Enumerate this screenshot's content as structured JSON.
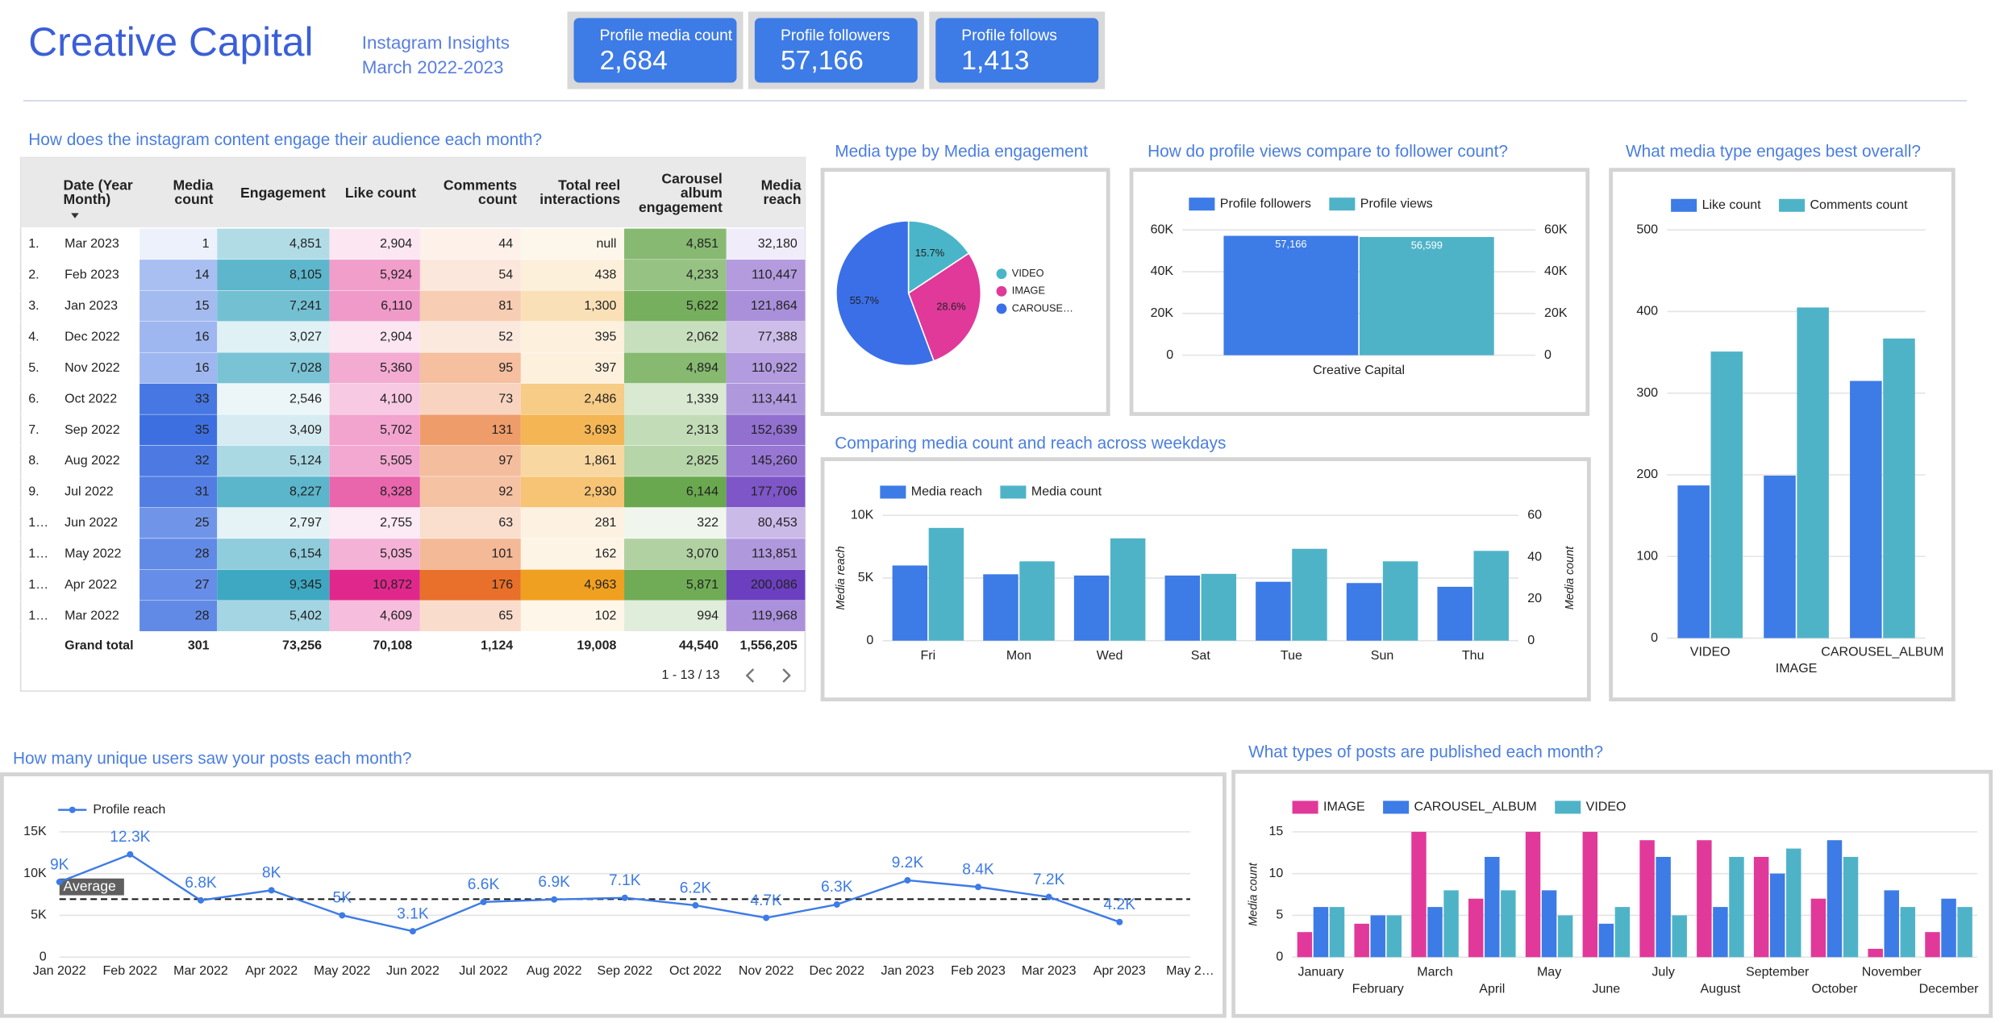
{
  "header": {
    "title": "Creative Capital",
    "subtitle": "Instagram Insights",
    "period": "March 2022-2023"
  },
  "kpis": [
    {
      "label": "Profile media count",
      "value": "2,684"
    },
    {
      "label": "Profile followers",
      "value": "57,166"
    },
    {
      "label": "Profile follows",
      "value": "1,413"
    }
  ],
  "table": {
    "title": "How does the instagram content engage their audience each month?",
    "columns": [
      "Date (Year Month)",
      "Media count",
      "Engagement",
      "Like count",
      "Comments count",
      "Total reel interactions",
      "Carousel album engagement",
      "Media reach"
    ],
    "colors": [
      "#3d6fe0",
      "#3ea8c2",
      "#e0288c",
      "#e8702a",
      "#f0a020",
      "#6aa84f",
      "#6c3fc0"
    ],
    "row_numbers": [
      "1.",
      "2.",
      "3.",
      "4.",
      "5.",
      "6.",
      "7.",
      "8.",
      "9.",
      "1…",
      "1…",
      "1…",
      "1…"
    ],
    "rows": [
      [
        "Mar 2023",
        "1",
        "4,851",
        "2,904",
        "44",
        "null",
        "4,851",
        "32,180"
      ],
      [
        "Feb 2023",
        "14",
        "8,105",
        "5,924",
        "54",
        "438",
        "4,233",
        "110,447"
      ],
      [
        "Jan 2023",
        "15",
        "7,241",
        "6,110",
        "81",
        "1,300",
        "5,622",
        "121,864"
      ],
      [
        "Dec 2022",
        "16",
        "3,027",
        "2,904",
        "52",
        "395",
        "2,062",
        "77,388"
      ],
      [
        "Nov 2022",
        "16",
        "7,028",
        "5,360",
        "95",
        "397",
        "4,894",
        "110,922"
      ],
      [
        "Oct 2022",
        "33",
        "2,546",
        "4,100",
        "73",
        "2,486",
        "1,339",
        "113,441"
      ],
      [
        "Sep 2022",
        "35",
        "3,409",
        "5,702",
        "131",
        "3,693",
        "2,313",
        "152,639"
      ],
      [
        "Aug 2022",
        "32",
        "5,124",
        "5,505",
        "97",
        "1,861",
        "2,825",
        "145,260"
      ],
      [
        "Jul 2022",
        "31",
        "8,227",
        "8,328",
        "92",
        "2,930",
        "6,144",
        "177,706"
      ],
      [
        "Jun 2022",
        "25",
        "2,797",
        "2,755",
        "63",
        "281",
        "322",
        "80,453"
      ],
      [
        "May 2022",
        "28",
        "6,154",
        "5,035",
        "101",
        "162",
        "3,070",
        "113,851"
      ],
      [
        "Apr 2022",
        "27",
        "9,345",
        "10,872",
        "176",
        "4,963",
        "5,871",
        "200,086"
      ],
      [
        "Mar 2022",
        "28",
        "5,402",
        "4,609",
        "65",
        "102",
        "994",
        "119,968"
      ]
    ],
    "total_label": "Grand total",
    "totals": [
      "301",
      "73,256",
      "70,108",
      "1,124",
      "19,008",
      "44,540",
      "1,556,205"
    ],
    "pagination": "1 - 13 / 13"
  },
  "chart_data": [
    {
      "type": "pie",
      "title": "Media type by Media engagement",
      "categories": [
        "VIDEO",
        "IMAGE",
        "CAROUSE…"
      ],
      "values": [
        15.7,
        28.6,
        55.7
      ],
      "value_labels": [
        "15.7%",
        "28.6%",
        "55.7%"
      ],
      "colors": [
        "#4ab5c8",
        "#e0399a",
        "#3a6fe8"
      ]
    },
    {
      "type": "bar",
      "title": "How do profile views compare to follower count?",
      "categories": [
        "Creative Capital"
      ],
      "series": [
        {
          "name": "Profile followers",
          "color": "#3d7be6",
          "values": [
            57166
          ],
          "value_labels": [
            "57,166"
          ]
        },
        {
          "name": "Profile views",
          "color": "#4fb3c8",
          "values": [
            56599
          ],
          "value_labels": [
            "56,599"
          ],
          "axis": "y2"
        }
      ],
      "ylim": [
        0,
        60000
      ],
      "yticks": [
        0,
        {
          "value": 20000,
          "label": "20K"
        },
        {
          "value": 40000,
          "label": "40K"
        },
        {
          "value": 60000,
          "label": "60K"
        }
      ],
      "y2lim": [
        0,
        60000
      ],
      "y2ticks": [
        0,
        {
          "value": 20000,
          "label": "20K"
        },
        {
          "value": 40000,
          "label": "40K"
        },
        {
          "value": 60000,
          "label": "60K"
        }
      ],
      "grid": true
    },
    {
      "type": "bar",
      "title": "Comparing media count and reach across weekdays",
      "categories": [
        "Fri",
        "Mon",
        "Wed",
        "Sat",
        "Tue",
        "Sun",
        "Thu"
      ],
      "series": [
        {
          "name": "Media reach",
          "color": "#3d7be6",
          "values": [
            6000,
            5300,
            5200,
            5200,
            4700,
            4600,
            4300
          ]
        },
        {
          "name": "Media count",
          "color": "#4fb3c8",
          "values": [
            54,
            38,
            49,
            32,
            44,
            38,
            43
          ],
          "axis": "y2"
        }
      ],
      "y_label": "Media reach",
      "y2_label": "Media count",
      "ylim": [
        0,
        10000
      ],
      "yticks": [
        0,
        {
          "value": 5000,
          "label": "5K"
        },
        {
          "value": 10000,
          "label": "10K"
        }
      ],
      "y2lim": [
        0,
        60
      ],
      "y2ticks": [
        0,
        20,
        40,
        60
      ],
      "grid": true
    },
    {
      "type": "bar",
      "title": "What media type engages best overall?",
      "categories": [
        "VIDEO",
        "IMAGE",
        "CAROUSEL_ALBUM"
      ],
      "series": [
        {
          "name": "Like count",
          "color": "#3d7be6",
          "values": [
            187,
            199,
            315
          ]
        },
        {
          "name": "Comments count",
          "color": "#4fb3c8",
          "values": [
            351,
            405,
            367
          ]
        }
      ],
      "ylim": [
        0,
        500
      ],
      "yticks": [
        0,
        100,
        200,
        300,
        400,
        500
      ],
      "grid": true
    },
    {
      "type": "line",
      "title": "How many unique users saw your posts each month?",
      "categories": [
        "Jan 2022",
        "Feb 2022",
        "Mar 2022",
        "Apr 2022",
        "May 2022",
        "Jun 2022",
        "Jul 2022",
        "Aug 2022",
        "Sep 2022",
        "Oct 2022",
        "Nov 2022",
        "Dec 2022",
        "Jan 2023",
        "Feb 2023",
        "Mar 2023",
        "Apr 2023",
        "May 2…"
      ],
      "series": [
        {
          "name": "Profile reach",
          "color": "#3d7be6",
          "values": [
            9000,
            12300,
            6800,
            8000,
            5000,
            3100,
            6600,
            6900,
            7100,
            6200,
            4700,
            6300,
            9200,
            8400,
            7200,
            4200,
            null
          ],
          "value_labels": [
            "9K",
            "12.3K",
            "6.8K",
            "8K",
            "5K",
            "3.1K",
            "6.6K",
            "6.9K",
            "7.1K",
            "6.2K",
            "4.7K",
            "6.3K",
            "9.2K",
            "8.4K",
            "7.2K",
            "4.2K",
            null
          ]
        }
      ],
      "reference_line": {
        "label": "Average",
        "value": 6940
      },
      "ylim": [
        0,
        15000
      ],
      "yticks": [
        0,
        {
          "value": 5000,
          "label": "5K"
        },
        {
          "value": 10000,
          "label": "10K"
        },
        {
          "value": 15000,
          "label": "15K"
        }
      ],
      "grid": true
    },
    {
      "type": "bar",
      "title": "What types of posts are published each month?",
      "categories": [
        "January",
        "February",
        "March",
        "April",
        "May",
        "June",
        "July",
        "August",
        "September",
        "October",
        "November",
        "December"
      ],
      "series": [
        {
          "name": "IMAGE",
          "color": "#e0399a",
          "values": [
            3,
            4,
            15,
            7,
            15,
            15,
            14,
            14,
            12,
            7,
            1,
            3
          ]
        },
        {
          "name": "CAROUSEL_ALBUM",
          "color": "#3d7be6",
          "values": [
            6,
            5,
            6,
            12,
            8,
            4,
            12,
            6,
            10,
            14,
            8,
            7
          ]
        },
        {
          "name": "VIDEO",
          "color": "#4fb3c8",
          "values": [
            6,
            5,
            8,
            8,
            5,
            6,
            5,
            12,
            13,
            12,
            6,
            6
          ]
        }
      ],
      "y_label": "Media count",
      "ylim": [
        0,
        15
      ],
      "yticks": [
        0,
        5,
        10,
        15
      ],
      "grid": true
    }
  ]
}
